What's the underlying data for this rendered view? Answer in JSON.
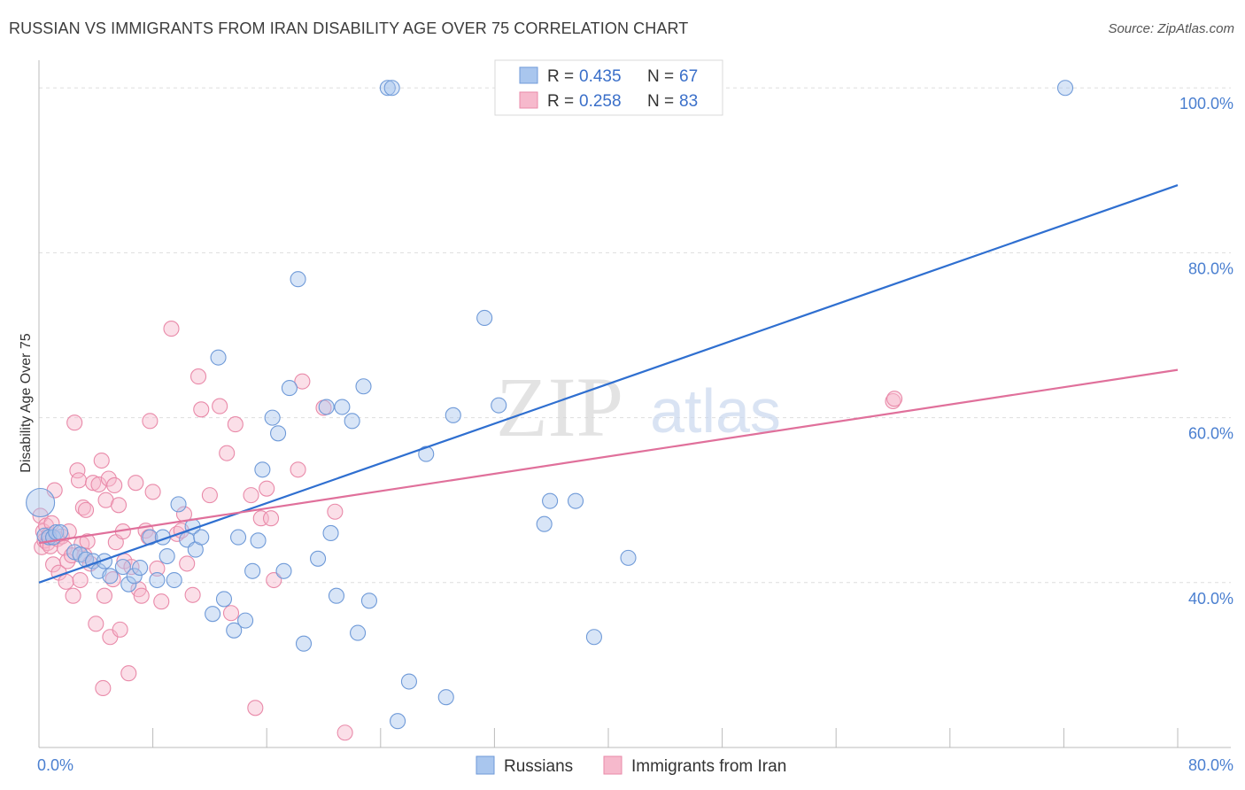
{
  "title": "RUSSIAN VS IMMIGRANTS FROM IRAN DISABILITY AGE OVER 75 CORRELATION CHART",
  "source": "Source: ZipAtlas.com",
  "watermark": {
    "zip": "ZIP",
    "atlas": "atlas"
  },
  "colors": {
    "russians_fill": "#a9c6ee",
    "russians_stroke": "#6f9ad8",
    "russians_line": "#2f6fd0",
    "iran_fill": "#f6b9cc",
    "iran_stroke": "#e98aa9",
    "iran_line": "#e0709b",
    "grid": "#dddddd",
    "tick_text": "#4a7fd0"
  },
  "legend": {
    "russians": {
      "r_label": "R = ",
      "r_value": "0.435",
      "n_label": "N = ",
      "n_value": "67"
    },
    "iran": {
      "r_label": "R = ",
      "r_value": "0.258",
      "n_label": "N = ",
      "n_value": "83"
    }
  },
  "chart_data": {
    "type": "scatter",
    "ylabel": "Disability Age Over 75",
    "xlabel": "",
    "xlim": [
      0,
      80
    ],
    "ylim": [
      20,
      104
    ],
    "x_tick_labels": [
      {
        "v": 0,
        "label": "0.0%"
      },
      {
        "v": 80,
        "label": "80.0%"
      }
    ],
    "y_tick_labels": [
      {
        "v": 40,
        "label": "40.0%"
      },
      {
        "v": 60,
        "label": "60.0%"
      },
      {
        "v": 80,
        "label": "80.0%"
      },
      {
        "v": 100,
        "label": "100.0%"
      }
    ],
    "series": [
      {
        "name": "Russians",
        "trend": {
          "x0": 0,
          "y0": 40.0,
          "x1": 80,
          "y1": 88.2
        },
        "points": [
          [
            0.1,
            49.7
          ],
          [
            0.4,
            45.7
          ],
          [
            0.7,
            45.5
          ],
          [
            1.0,
            45.5
          ],
          [
            1.2,
            46.1
          ],
          [
            1.5,
            46.1
          ],
          [
            2.5,
            43.7
          ],
          [
            2.9,
            43.4
          ],
          [
            3.3,
            42.8
          ],
          [
            3.8,
            42.6
          ],
          [
            4.2,
            41.4
          ],
          [
            4.6,
            42.6
          ],
          [
            5.0,
            40.8
          ],
          [
            5.9,
            41.9
          ],
          [
            6.3,
            39.8
          ],
          [
            6.7,
            40.8
          ],
          [
            7.1,
            41.8
          ],
          [
            7.8,
            45.5
          ],
          [
            8.3,
            40.3
          ],
          [
            8.7,
            45.5
          ],
          [
            9.0,
            43.2
          ],
          [
            9.5,
            40.3
          ],
          [
            9.8,
            49.5
          ],
          [
            10.4,
            45.2
          ],
          [
            10.8,
            46.8
          ],
          [
            11.0,
            44.0
          ],
          [
            11.4,
            45.5
          ],
          [
            12.2,
            36.2
          ],
          [
            12.6,
            67.3
          ],
          [
            13.0,
            38.0
          ],
          [
            13.7,
            34.2
          ],
          [
            14.0,
            45.5
          ],
          [
            14.5,
            35.4
          ],
          [
            15.0,
            41.4
          ],
          [
            15.4,
            45.1
          ],
          [
            15.7,
            53.7
          ],
          [
            16.4,
            60.0
          ],
          [
            16.8,
            58.1
          ],
          [
            17.2,
            41.4
          ],
          [
            17.6,
            63.6
          ],
          [
            18.2,
            76.8
          ],
          [
            18.6,
            32.6
          ],
          [
            19.6,
            42.9
          ],
          [
            20.2,
            61.3
          ],
          [
            20.5,
            46.0
          ],
          [
            20.9,
            38.4
          ],
          [
            21.3,
            61.3
          ],
          [
            22.0,
            59.6
          ],
          [
            22.4,
            33.9
          ],
          [
            22.8,
            63.8
          ],
          [
            23.2,
            37.8
          ],
          [
            24.5,
            100.0
          ],
          [
            24.8,
            100.0
          ],
          [
            25.2,
            23.2
          ],
          [
            26.0,
            28.0
          ],
          [
            27.2,
            55.6
          ],
          [
            28.6,
            26.1
          ],
          [
            29.1,
            60.3
          ],
          [
            31.3,
            72.1
          ],
          [
            32.3,
            61.5
          ],
          [
            33.7,
            100.0
          ],
          [
            35.5,
            47.1
          ],
          [
            35.9,
            49.9
          ],
          [
            37.7,
            49.9
          ],
          [
            39.0,
            33.4
          ],
          [
            41.4,
            43.0
          ],
          [
            72.1,
            100.0
          ]
        ]
      },
      {
        "name": "Immigrants from Iran",
        "trend": {
          "x0": 0,
          "y0": 44.8,
          "x1": 80,
          "y1": 65.8
        },
        "points": [
          [
            0.1,
            48.1
          ],
          [
            0.2,
            44.3
          ],
          [
            0.3,
            46.2
          ],
          [
            0.4,
            45.1
          ],
          [
            0.5,
            46.9
          ],
          [
            0.6,
            44.8
          ],
          [
            0.7,
            45.8
          ],
          [
            0.8,
            44.4
          ],
          [
            0.9,
            47.2
          ],
          [
            1.0,
            42.2
          ],
          [
            1.1,
            51.2
          ],
          [
            1.3,
            45.3
          ],
          [
            1.4,
            41.2
          ],
          [
            1.6,
            45.6
          ],
          [
            1.8,
            44.2
          ],
          [
            1.9,
            40.1
          ],
          [
            2.0,
            42.6
          ],
          [
            2.1,
            46.2
          ],
          [
            2.3,
            43.3
          ],
          [
            2.4,
            38.4
          ],
          [
            2.5,
            59.4
          ],
          [
            2.7,
            53.6
          ],
          [
            2.8,
            52.4
          ],
          [
            2.9,
            40.3
          ],
          [
            3.0,
            44.7
          ],
          [
            3.1,
            49.1
          ],
          [
            3.2,
            43.3
          ],
          [
            3.3,
            48.8
          ],
          [
            3.4,
            45.0
          ],
          [
            3.6,
            42.3
          ],
          [
            3.8,
            52.1
          ],
          [
            4.0,
            35.0
          ],
          [
            4.2,
            51.9
          ],
          [
            4.4,
            54.8
          ],
          [
            4.5,
            27.2
          ],
          [
            4.6,
            38.4
          ],
          [
            4.7,
            50.0
          ],
          [
            4.9,
            52.6
          ],
          [
            5.0,
            33.4
          ],
          [
            5.2,
            40.4
          ],
          [
            5.3,
            51.8
          ],
          [
            5.4,
            44.9
          ],
          [
            5.6,
            49.4
          ],
          [
            5.7,
            34.3
          ],
          [
            5.9,
            46.2
          ],
          [
            6.0,
            42.6
          ],
          [
            6.3,
            29.0
          ],
          [
            6.5,
            41.9
          ],
          [
            6.8,
            52.1
          ],
          [
            7.0,
            39.2
          ],
          [
            7.2,
            38.4
          ],
          [
            7.5,
            46.3
          ],
          [
            7.7,
            45.5
          ],
          [
            7.8,
            59.6
          ],
          [
            8.0,
            51.0
          ],
          [
            8.3,
            41.7
          ],
          [
            8.6,
            37.7
          ],
          [
            9.3,
            70.8
          ],
          [
            9.7,
            45.9
          ],
          [
            10.0,
            46.3
          ],
          [
            10.2,
            48.3
          ],
          [
            10.4,
            42.3
          ],
          [
            10.8,
            38.5
          ],
          [
            11.2,
            65.0
          ],
          [
            11.4,
            61.0
          ],
          [
            12.0,
            50.6
          ],
          [
            12.7,
            61.4
          ],
          [
            13.2,
            55.7
          ],
          [
            13.5,
            36.3
          ],
          [
            13.8,
            59.2
          ],
          [
            14.9,
            50.6
          ],
          [
            15.2,
            24.8
          ],
          [
            15.6,
            47.8
          ],
          [
            16.0,
            51.4
          ],
          [
            16.3,
            47.8
          ],
          [
            16.5,
            40.3
          ],
          [
            18.2,
            53.7
          ],
          [
            18.5,
            64.4
          ],
          [
            20.0,
            61.2
          ],
          [
            20.8,
            48.6
          ],
          [
            21.5,
            21.8
          ],
          [
            60.0,
            62.0
          ],
          [
            60.1,
            62.3
          ]
        ]
      }
    ]
  },
  "bottom_legend": {
    "russians": "Russians",
    "iran": "Immigrants from Iran"
  }
}
